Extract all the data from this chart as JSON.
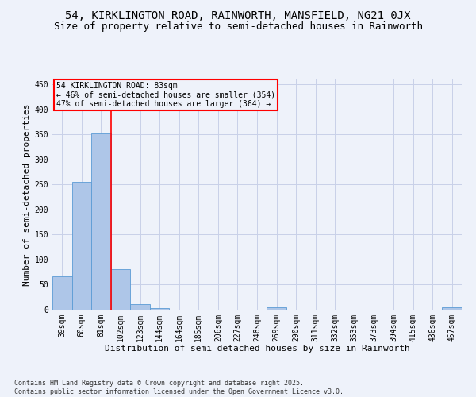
{
  "title_line1": "54, KIRKLINGTON ROAD, RAINWORTH, MANSFIELD, NG21 0JX",
  "title_line2": "Size of property relative to semi-detached houses in Rainworth",
  "xlabel": "Distribution of semi-detached houses by size in Rainworth",
  "ylabel": "Number of semi-detached properties",
  "categories": [
    "39sqm",
    "60sqm",
    "81sqm",
    "102sqm",
    "123sqm",
    "144sqm",
    "164sqm",
    "185sqm",
    "206sqm",
    "227sqm",
    "248sqm",
    "269sqm",
    "290sqm",
    "311sqm",
    "332sqm",
    "353sqm",
    "373sqm",
    "394sqm",
    "415sqm",
    "436sqm",
    "457sqm"
  ],
  "values": [
    66,
    255,
    352,
    81,
    11,
    3,
    0,
    0,
    0,
    0,
    0,
    5,
    0,
    0,
    0,
    0,
    0,
    0,
    0,
    0,
    4
  ],
  "bar_color": "#aec6e8",
  "bar_edge_color": "#5b9bd5",
  "vline_x": 2.5,
  "vline_color": "red",
  "ylim": [
    0,
    460
  ],
  "yticks": [
    0,
    50,
    100,
    150,
    200,
    250,
    300,
    350,
    400,
    450
  ],
  "annotation_title": "54 KIRKLINGTON ROAD: 83sqm",
  "annotation_line2": "← 46% of semi-detached houses are smaller (354)",
  "annotation_line3": "47% of semi-detached houses are larger (364) →",
  "annotation_box_color": "red",
  "footnote": "Contains HM Land Registry data © Crown copyright and database right 2025.\nContains public sector information licensed under the Open Government Licence v3.0.",
  "background_color": "#eef2fa",
  "grid_color": "#c8d0e8",
  "title_fontsize": 10,
  "subtitle_fontsize": 9,
  "axis_label_fontsize": 8,
  "tick_fontsize": 7,
  "annotation_fontsize": 7,
  "footnote_fontsize": 6
}
